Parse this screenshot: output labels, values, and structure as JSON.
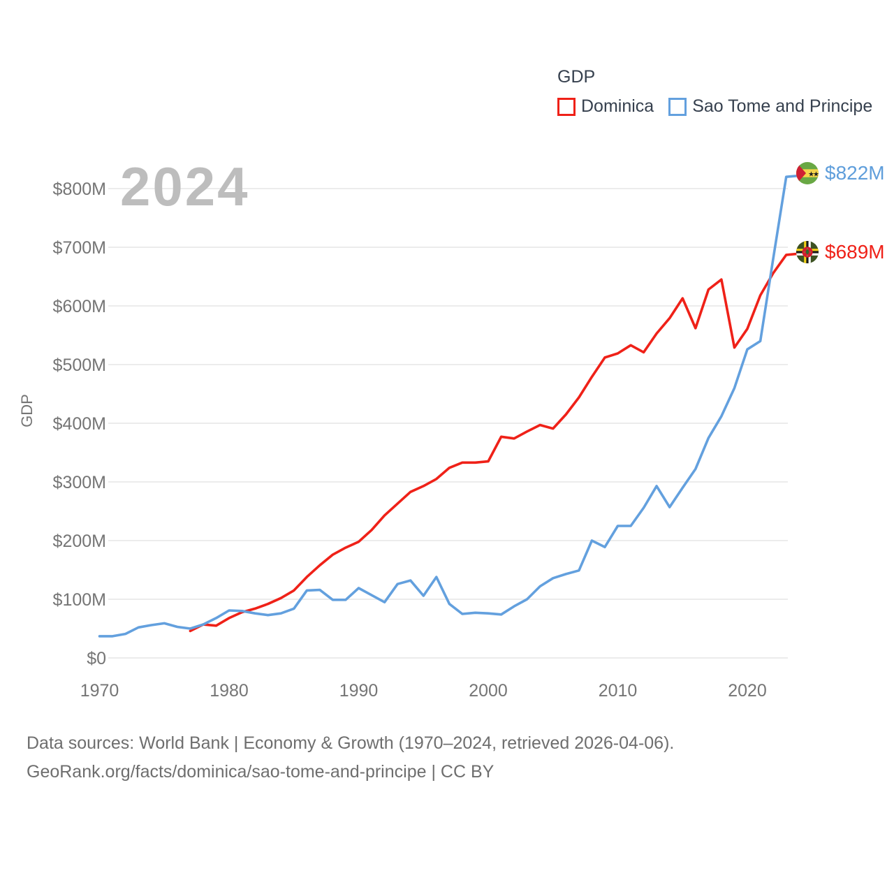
{
  "watermark": "2024",
  "y_axis_title": "GDP",
  "legend": {
    "title": "GDP",
    "items": [
      {
        "label": "Dominica",
        "color": "#ef2118"
      },
      {
        "label": "Sao Tome and Principe",
        "color": "#63a0de"
      }
    ]
  },
  "end_labels": [
    {
      "series": "Sao Tome and Principe",
      "value": "$822M",
      "color": "#5f9edb",
      "flag": "sao-tome-and-principe-flag"
    },
    {
      "series": "Dominica",
      "value": "$689M",
      "color": "#ef2118",
      "flag": "dominica-flag"
    }
  ],
  "footer": {
    "line1": "Data sources: World Bank | Economy & Growth (1970–2024, retrieved 2026-04-06).",
    "line2": "GeoRank.org/facts/dominica/sao-tome-and-principe | CC BY"
  },
  "chart_data": {
    "type": "line",
    "title": "GDP",
    "unit": "USD millions (current)",
    "ylabel": "GDP",
    "xlabel": "",
    "ylim_millions": [
      0,
      800
    ],
    "y_ticks": [
      {
        "value": 0,
        "label": "$0"
      },
      {
        "value": 100,
        "label": "$100M"
      },
      {
        "value": 200,
        "label": "$200M"
      },
      {
        "value": 300,
        "label": "$300M"
      },
      {
        "value": 400,
        "label": "$400M"
      },
      {
        "value": 500,
        "label": "$500M"
      },
      {
        "value": 600,
        "label": "$600M"
      },
      {
        "value": 700,
        "label": "$700M"
      },
      {
        "value": 800,
        "label": "$800M"
      }
    ],
    "x_ticks": [
      1970,
      1980,
      1990,
      2000,
      2010,
      2020
    ],
    "x_range": [
      1970,
      2024
    ],
    "grid": true,
    "legend_position": "top-right",
    "series": [
      {
        "name": "Dominica",
        "color": "#ef2118",
        "start_year": 1977,
        "end_value_label": "$689M",
        "values_millions": [
          46,
          57,
          55,
          68,
          78,
          84,
          92,
          102,
          115,
          138,
          158,
          176,
          188,
          198,
          218,
          243,
          263,
          283,
          293,
          305,
          324,
          333,
          333,
          335,
          377,
          374,
          386,
          397,
          391,
          415,
          444,
          479,
          512,
          519,
          533,
          521,
          553,
          579,
          613,
          562,
          628,
          645,
          529,
          561,
          618,
          656,
          687,
          689
        ]
      },
      {
        "name": "Sao Tome and Principe",
        "color": "#63a0de",
        "start_year": 1970,
        "end_value_label": "$822M",
        "values_millions": [
          37,
          37,
          41,
          52,
          56,
          59,
          53,
          50,
          57,
          68,
          81,
          80,
          76,
          73,
          76,
          84,
          115,
          116,
          99,
          99,
          119,
          107,
          95,
          126,
          132,
          106,
          138,
          92,
          75,
          77,
          76,
          74,
          88,
          100,
          122,
          136,
          143,
          149,
          200,
          189,
          225,
          225,
          256,
          293,
          257,
          290,
          322,
          375,
          412,
          460,
          526,
          540,
          681,
          820,
          822
        ]
      }
    ]
  }
}
